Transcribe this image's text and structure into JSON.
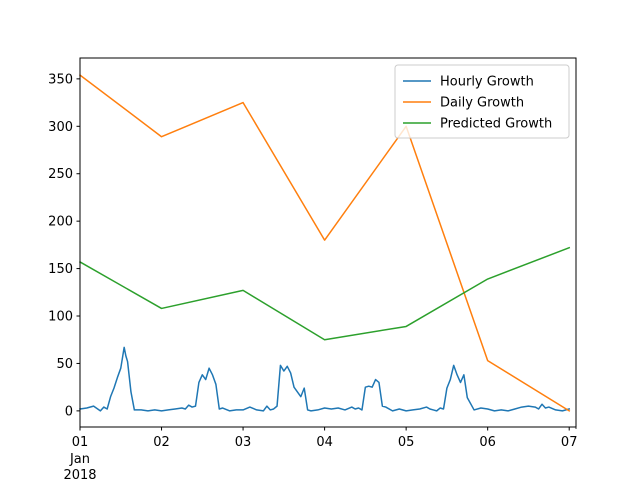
{
  "chart_data": {
    "type": "line",
    "title": "",
    "xlabel": "",
    "ylabel": "",
    "x_axis": {
      "type": "date",
      "range": [
        "2018-01-01",
        "2018-01-07T02:00"
      ],
      "ticks": [
        {
          "date": "2018-01-01",
          "label": "01",
          "sublabel": "Jan",
          "sublabel2": "2018"
        },
        {
          "date": "2018-01-02",
          "label": "02"
        },
        {
          "date": "2018-01-03",
          "label": "03"
        },
        {
          "date": "2018-01-04",
          "label": "04"
        },
        {
          "date": "2018-01-05",
          "label": "05"
        },
        {
          "date": "2018-01-06",
          "label": "06"
        },
        {
          "date": "2018-01-07",
          "label": "07"
        }
      ]
    },
    "y_axis": {
      "range": [
        -17,
        372
      ],
      "ticks": [
        0,
        50,
        100,
        150,
        200,
        250,
        300,
        350
      ]
    },
    "grid": false,
    "legend": "top-right",
    "series": [
      {
        "name": "Hourly Growth",
        "color": "#1f77b4",
        "x": [
          "2018-01-01T00:00",
          "2018-01-01T02:00",
          "2018-01-01T04:00",
          "2018-01-01T06:00",
          "2018-01-01T07:00",
          "2018-01-01T08:00",
          "2018-01-01T09:00",
          "2018-01-01T10:00",
          "2018-01-01T11:00",
          "2018-01-01T12:00",
          "2018-01-01T13:00",
          "2018-01-01T13:30",
          "2018-01-01T14:00",
          "2018-01-01T15:00",
          "2018-01-01T16:00",
          "2018-01-01T17:00",
          "2018-01-01T18:00",
          "2018-01-01T20:00",
          "2018-01-01T22:00",
          "2018-01-02T00:00",
          "2018-01-02T02:00",
          "2018-01-02T04:00",
          "2018-01-02T06:00",
          "2018-01-02T07:00",
          "2018-01-02T08:00",
          "2018-01-02T09:00",
          "2018-01-02T10:00",
          "2018-01-02T11:00",
          "2018-01-02T12:00",
          "2018-01-02T13:00",
          "2018-01-02T14:00",
          "2018-01-02T15:00",
          "2018-01-02T16:00",
          "2018-01-02T17:00",
          "2018-01-02T18:00",
          "2018-01-02T20:00",
          "2018-01-02T22:00",
          "2018-01-03T00:00",
          "2018-01-03T02:00",
          "2018-01-03T04:00",
          "2018-01-03T06:00",
          "2018-01-03T07:00",
          "2018-01-03T08:00",
          "2018-01-03T09:00",
          "2018-01-03T10:00",
          "2018-01-03T11:00",
          "2018-01-03T12:00",
          "2018-01-03T13:00",
          "2018-01-03T14:00",
          "2018-01-03T15:00",
          "2018-01-03T16:00",
          "2018-01-03T17:00",
          "2018-01-03T18:00",
          "2018-01-03T19:00",
          "2018-01-03T20:00",
          "2018-01-03T22:00",
          "2018-01-04T00:00",
          "2018-01-04T02:00",
          "2018-01-04T04:00",
          "2018-01-04T06:00",
          "2018-01-04T08:00",
          "2018-01-04T09:00",
          "2018-01-04T10:00",
          "2018-01-04T11:00",
          "2018-01-04T12:00",
          "2018-01-04T13:00",
          "2018-01-04T14:00",
          "2018-01-04T15:00",
          "2018-01-04T16:00",
          "2018-01-04T17:00",
          "2018-01-04T18:00",
          "2018-01-04T20:00",
          "2018-01-04T22:00",
          "2018-01-05T00:00",
          "2018-01-05T02:00",
          "2018-01-05T04:00",
          "2018-01-05T06:00",
          "2018-01-05T07:00",
          "2018-01-05T08:00",
          "2018-01-05T09:00",
          "2018-01-05T10:00",
          "2018-01-05T11:00",
          "2018-01-05T12:00",
          "2018-01-05T13:00",
          "2018-01-05T14:00",
          "2018-01-05T15:00",
          "2018-01-05T16:00",
          "2018-01-05T17:00",
          "2018-01-05T18:00",
          "2018-01-05T20:00",
          "2018-01-05T22:00",
          "2018-01-06T00:00",
          "2018-01-06T02:00",
          "2018-01-06T04:00",
          "2018-01-06T06:00",
          "2018-01-06T08:00",
          "2018-01-06T10:00",
          "2018-01-06T12:00",
          "2018-01-06T14:00",
          "2018-01-06T15:00",
          "2018-01-06T16:00",
          "2018-01-06T17:00",
          "2018-01-06T18:00",
          "2018-01-06T20:00",
          "2018-01-06T22:00",
          "2018-01-07T00:00"
        ],
        "values": [
          2,
          3,
          5,
          0,
          4,
          2,
          15,
          24,
          35,
          45,
          67,
          58,
          52,
          20,
          1,
          1,
          1,
          0,
          1,
          0,
          1,
          2,
          3,
          2,
          6,
          4,
          5,
          30,
          38,
          33,
          45,
          38,
          28,
          2,
          3,
          0,
          1,
          1,
          4,
          1,
          0,
          5,
          1,
          2,
          5,
          48,
          42,
          47,
          40,
          25,
          20,
          15,
          24,
          1,
          0,
          1,
          3,
          2,
          3,
          1,
          4,
          2,
          3,
          1,
          25,
          26,
          25,
          33,
          30,
          5,
          4,
          0,
          2,
          0,
          1,
          2,
          4,
          2,
          1,
          0,
          3,
          2,
          24,
          33,
          48,
          38,
          30,
          38,
          14,
          1,
          3,
          2,
          0,
          1,
          0,
          2,
          4,
          5,
          4,
          2,
          7,
          3,
          4,
          1,
          0,
          2
        ]
      },
      {
        "name": "Daily Growth",
        "color": "#ff7f0e",
        "x": [
          "2018-01-01",
          "2018-01-02",
          "2018-01-03",
          "2018-01-04",
          "2018-01-05",
          "2018-01-06",
          "2018-01-07"
        ],
        "values": [
          354,
          289,
          325,
          180,
          300,
          53,
          0
        ]
      },
      {
        "name": "Predicted Growth",
        "color": "#2ca02c",
        "x": [
          "2018-01-01",
          "2018-01-02",
          "2018-01-03",
          "2018-01-04",
          "2018-01-05",
          "2018-01-06",
          "2018-01-07"
        ],
        "values": [
          157,
          108,
          127,
          75,
          89,
          139,
          172
        ]
      }
    ]
  }
}
